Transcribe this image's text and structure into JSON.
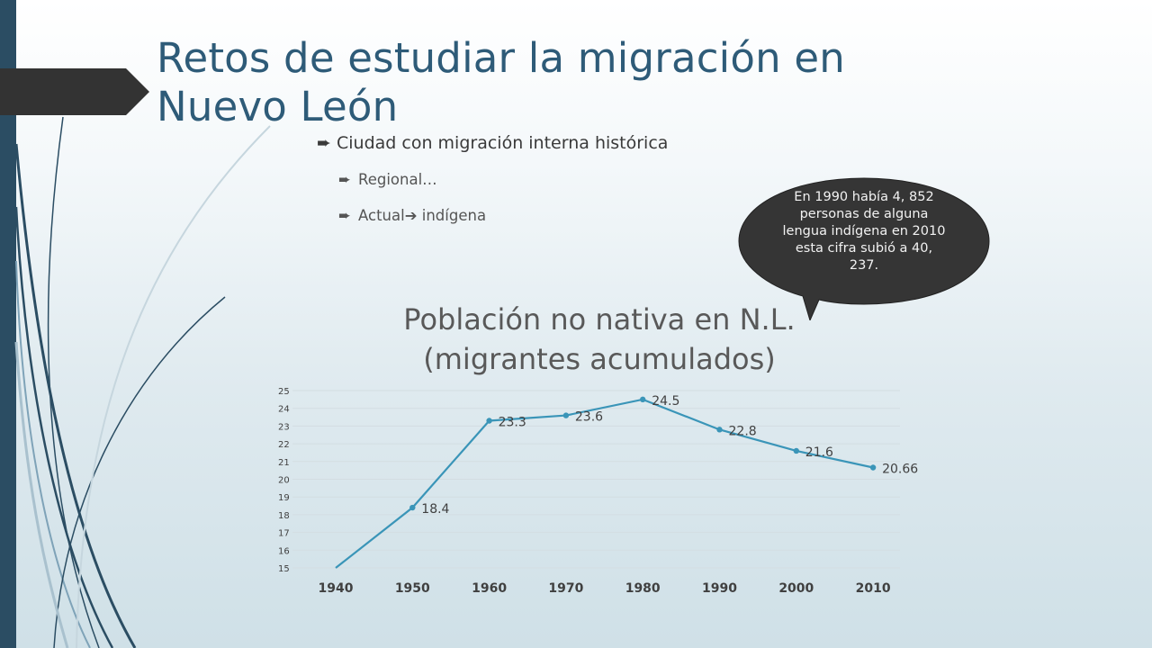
{
  "slide": {
    "title": "Retos de estudiar la migración en Nuevo León",
    "bullets": [
      {
        "level": 1,
        "marker": "➨",
        "text": "Ciudad con migración interna histórica"
      },
      {
        "level": 2,
        "marker": "➨",
        "text": "Regional…"
      },
      {
        "level": 2,
        "marker": "➨",
        "text": "Actual➔ indígena"
      }
    ],
    "callout": "En 1990 había 4, 852 personas de alguna lengua indígena en 2010 esta cifra subió a 40, 237."
  },
  "colors": {
    "accent_bar": "#2b4d63",
    "title": "#2e5b78",
    "line": "#3a95b8",
    "tab": "#333333"
  },
  "chart_data": {
    "type": "line",
    "title": "Población no nativa en N.L. (migrantes acumulados)",
    "title_lines": [
      "Población no nativa en N.L.",
      "(migrantes acumulados)"
    ],
    "categories": [
      "1940",
      "1950",
      "1960",
      "1970",
      "1980",
      "1990",
      "2000",
      "2010"
    ],
    "series": [
      {
        "values": [
          15,
          18.4,
          23.3,
          23.6,
          24.5,
          22.8,
          21.6,
          20.66
        ],
        "labels": [
          "",
          "18.4",
          "23.3",
          "23.6",
          "24.5",
          "22.8",
          "21.6",
          "20.66"
        ]
      }
    ],
    "ylim": [
      15,
      25
    ],
    "yticks": [
      15,
      16,
      17,
      18,
      19,
      20,
      21,
      22,
      23,
      24,
      25
    ],
    "grid": true,
    "xlabel": "",
    "ylabel": ""
  }
}
